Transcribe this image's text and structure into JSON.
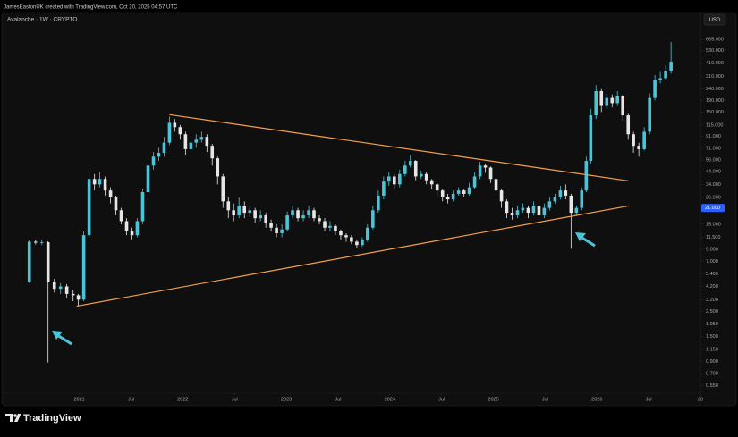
{
  "header": {
    "credit": "JamesEastonUK created with TradingView.com, Oct 20, 2025 04:57 UTC"
  },
  "footer": {
    "brand": "TradingView"
  },
  "chart_data": {
    "type": "candlestick",
    "title": "Avalanche · 1W · CRYPTO",
    "currency": "USD",
    "log_scale": true,
    "up_color": "#4cc4d8",
    "down_color": "#e6e6e6",
    "xlim": [
      2020.26,
      2027.0
    ],
    "xticks": [
      2021,
      {
        "value": 2021.5,
        "label": "Jul"
      },
      2022,
      {
        "value": 2022.5,
        "label": "Jul"
      },
      2023,
      {
        "value": 2023.5,
        "label": "Jul"
      },
      2024,
      {
        "value": 2024.5,
        "label": "Jul"
      },
      2025,
      {
        "value": 2025.5,
        "label": "Jul"
      },
      2026,
      {
        "value": 2026.5,
        "label": "Jul"
      },
      {
        "value": 2027,
        "label": "20"
      }
    ],
    "ylim": [
      0.47,
      860
    ],
    "yticks": [
      {
        "value": 665,
        "label": "665.000"
      },
      {
        "value": 530,
        "label": "530.000"
      },
      {
        "value": 410,
        "label": "410.000"
      },
      {
        "value": 310,
        "label": "310.000"
      },
      {
        "value": 240,
        "label": "240.000"
      },
      {
        "value": 190,
        "label": "190.000"
      },
      {
        "value": 150,
        "label": "150.000"
      },
      {
        "value": 115,
        "label": "115.000"
      },
      {
        "value": 91,
        "label": "91.000"
      },
      {
        "value": 71,
        "label": "71.000"
      },
      {
        "value": 56,
        "label": "56.000"
      },
      {
        "value": 44,
        "label": "44.000"
      },
      {
        "value": 34,
        "label": "34.000"
      },
      {
        "value": 26,
        "label": "26.000"
      },
      {
        "value": 15,
        "label": "15.000"
      },
      {
        "value": 11.5,
        "label": "11.500"
      },
      {
        "value": 9,
        "label": "9.000"
      },
      {
        "value": 7,
        "label": "7.000"
      },
      {
        "value": 5.4,
        "label": "5.400"
      },
      {
        "value": 4.2,
        "label": "4.200"
      },
      {
        "value": 3.2,
        "label": "3.200"
      },
      {
        "value": 2.5,
        "label": "2.500"
      },
      {
        "value": 1.95,
        "label": "1.950"
      },
      {
        "value": 1.5,
        "label": "1.500"
      },
      {
        "value": 1.15,
        "label": "1.150"
      },
      {
        "value": 0.9,
        "label": "0.900"
      },
      {
        "value": 0.7,
        "label": "0.700"
      },
      {
        "value": 0.55,
        "label": "0.550"
      }
    ],
    "last_price": {
      "value": 21,
      "label": "21.000",
      "color": "#2962ff"
    },
    "trendline_color": "#f5a04a",
    "trendlines": [
      {
        "x": [
          2021.871,
          2026.302
        ],
        "y": [
          142,
          36.6
        ]
      },
      {
        "x": [
          2020.974,
          2026.31
        ],
        "y": [
          2.8,
          21.9
        ]
      }
    ],
    "x": [
      2020.517,
      2020.578,
      2020.638,
      2020.698,
      2020.759,
      2020.819,
      2020.879,
      2020.94,
      2020.991,
      2021.043,
      2021.095,
      2021.147,
      2021.198,
      2021.25,
      2021.302,
      2021.353,
      2021.405,
      2021.457,
      2021.509,
      2021.56,
      2021.612,
      2021.664,
      2021.716,
      2021.767,
      2021.819,
      2021.871,
      2021.922,
      2021.974,
      2022.026,
      2022.078,
      2022.129,
      2022.181,
      2022.233,
      2022.284,
      2022.336,
      2022.388,
      2022.44,
      2022.491,
      2022.543,
      2022.595,
      2022.647,
      2022.698,
      2022.75,
      2022.802,
      2022.853,
      2022.905,
      2022.957,
      2023.009,
      2023.06,
      2023.112,
      2023.164,
      2023.216,
      2023.267,
      2023.319,
      2023.371,
      2023.422,
      2023.474,
      2023.526,
      2023.578,
      2023.629,
      2023.681,
      2023.733,
      2023.784,
      2023.836,
      2023.888,
      2023.94,
      2023.991,
      2024.043,
      2024.095,
      2024.147,
      2024.198,
      2024.25,
      2024.302,
      2024.353,
      2024.405,
      2024.457,
      2024.509,
      2024.56,
      2024.612,
      2024.664,
      2024.716,
      2024.767,
      2024.819,
      2024.871,
      2024.922,
      2024.974,
      2025.026,
      2025.078,
      2025.129,
      2025.181,
      2025.233,
      2025.284,
      2025.336,
      2025.388,
      2025.44,
      2025.491,
      2025.543,
      2025.595,
      2025.647,
      2025.698,
      2025.75,
      2025.802,
      2025.853,
      2025.897,
      2025.94,
      2025.991,
      2026.043,
      2026.095,
      2026.147,
      2026.198,
      2026.25,
      2026.302,
      2026.353,
      2026.405,
      2026.457,
      2026.509,
      2026.56,
      2026.612,
      2026.664,
      2026.716
    ],
    "open": [
      4.6,
      10.5,
      10.3,
      10.4,
      4.6,
      4.0,
      4.2,
      3.6,
      3.5,
      3.2,
      12,
      38,
      34,
      38,
      30,
      26,
      20,
      16,
      13,
      12,
      16,
      29,
      50,
      60,
      65,
      80,
      120,
      110,
      95,
      70,
      80,
      85,
      90,
      75,
      58,
      40,
      24,
      20,
      18,
      22,
      19,
      20,
      17,
      18,
      15.5,
      14,
      12.5,
      13.5,
      18,
      20,
      17,
      18,
      20,
      17,
      16,
      14,
      14.5,
      13,
      12,
      11.5,
      10.5,
      9.8,
      11,
      14,
      20,
      27,
      36,
      40,
      34,
      42,
      50,
      55,
      40,
      42,
      37,
      34,
      30,
      26,
      25,
      28,
      30,
      28,
      32,
      40,
      50,
      48,
      38,
      30,
      24,
      19,
      18,
      20,
      21,
      19,
      22,
      18,
      21,
      24,
      26,
      30,
      27,
      19,
      21,
      30,
      55,
      140,
      230,
      170,
      200,
      180,
      210,
      140,
      95,
      75,
      70,
      100,
      200,
      290,
      300,
      350
    ],
    "high": [
      10.8,
      11,
      10.9,
      10.6,
      4.9,
      4.5,
      4.4,
      3.9,
      3.6,
      13,
      45,
      42,
      44,
      40,
      32,
      27,
      21,
      17,
      14,
      17,
      31,
      54,
      66,
      72,
      90,
      137,
      130,
      115,
      100,
      88,
      95,
      100,
      95,
      78,
      60,
      42,
      26,
      23,
      26,
      24,
      22,
      21,
      20,
      19,
      16.5,
      15,
      15,
      19.5,
      22,
      21,
      20,
      22,
      21,
      18,
      17,
      16,
      15,
      13.5,
      12.5,
      12,
      11,
      11.5,
      15,
      22,
      30,
      40,
      44,
      42,
      46,
      55,
      62,
      56,
      45,
      44,
      38,
      35,
      31,
      28,
      30,
      32,
      31,
      35,
      44,
      54,
      52,
      49,
      39,
      31,
      25,
      21,
      22,
      23,
      22,
      24,
      23,
      23,
      26,
      28,
      33,
      34,
      28,
      22,
      32,
      60,
      160,
      260,
      240,
      220,
      215,
      230,
      215,
      145,
      100,
      80,
      110,
      220,
      320,
      340,
      390,
      630
    ],
    "low": [
      4.5,
      9.9,
      9.8,
      0.88,
      3.7,
      3.6,
      3.3,
      3.1,
      2.8,
      3.1,
      11.5,
      30,
      32,
      27,
      23,
      18,
      15,
      12,
      11,
      11.5,
      15,
      27,
      46,
      55,
      60,
      76,
      100,
      85,
      62,
      65,
      72,
      80,
      66,
      50,
      34,
      21,
      17,
      16,
      17,
      17,
      17.5,
      15.5,
      16,
      14,
      13,
      11.5,
      11.5,
      13,
      17,
      16,
      16,
      17,
      16,
      15,
      13,
      13,
      12,
      11,
      10.5,
      10,
      9.2,
      9.5,
      10.5,
      13.5,
      19,
      25,
      33,
      31,
      32,
      40,
      48,
      37,
      38,
      34,
      31,
      27,
      24,
      23,
      24,
      27,
      26,
      27,
      31,
      38,
      43,
      35,
      27,
      21,
      17,
      16.5,
      17,
      19,
      17,
      18,
      16.5,
      17,
      20,
      23,
      25,
      25,
      9.1,
      18,
      20,
      29,
      52,
      130,
      150,
      160,
      165,
      170,
      125,
      85,
      65,
      60,
      68,
      95,
      190,
      270,
      290,
      330
    ],
    "close": [
      10.5,
      10.3,
      10.4,
      4.6,
      4.0,
      4.2,
      3.6,
      3.5,
      3.2,
      12,
      38,
      34,
      38,
      30,
      26,
      20,
      16,
      13,
      12,
      16,
      29,
      50,
      60,
      65,
      80,
      120,
      110,
      95,
      70,
      80,
      85,
      90,
      75,
      58,
      40,
      24,
      20,
      18,
      22,
      19,
      20,
      17,
      18,
      15.5,
      14,
      12.5,
      13.5,
      18,
      20,
      17,
      18,
      20,
      17,
      16,
      14,
      14.5,
      13,
      12,
      11.5,
      10.5,
      9.8,
      11,
      14,
      20,
      27,
      36,
      40,
      34,
      42,
      50,
      55,
      40,
      42,
      37,
      34,
      30,
      26,
      25,
      28,
      30,
      28,
      32,
      40,
      50,
      48,
      38,
      30,
      24,
      19,
      18,
      20,
      21,
      19,
      22,
      18,
      21,
      24,
      26,
      30,
      27,
      19,
      21,
      30,
      55,
      140,
      230,
      170,
      200,
      180,
      210,
      140,
      95,
      75,
      70,
      100,
      200,
      290,
      300,
      350,
      420
    ]
  }
}
